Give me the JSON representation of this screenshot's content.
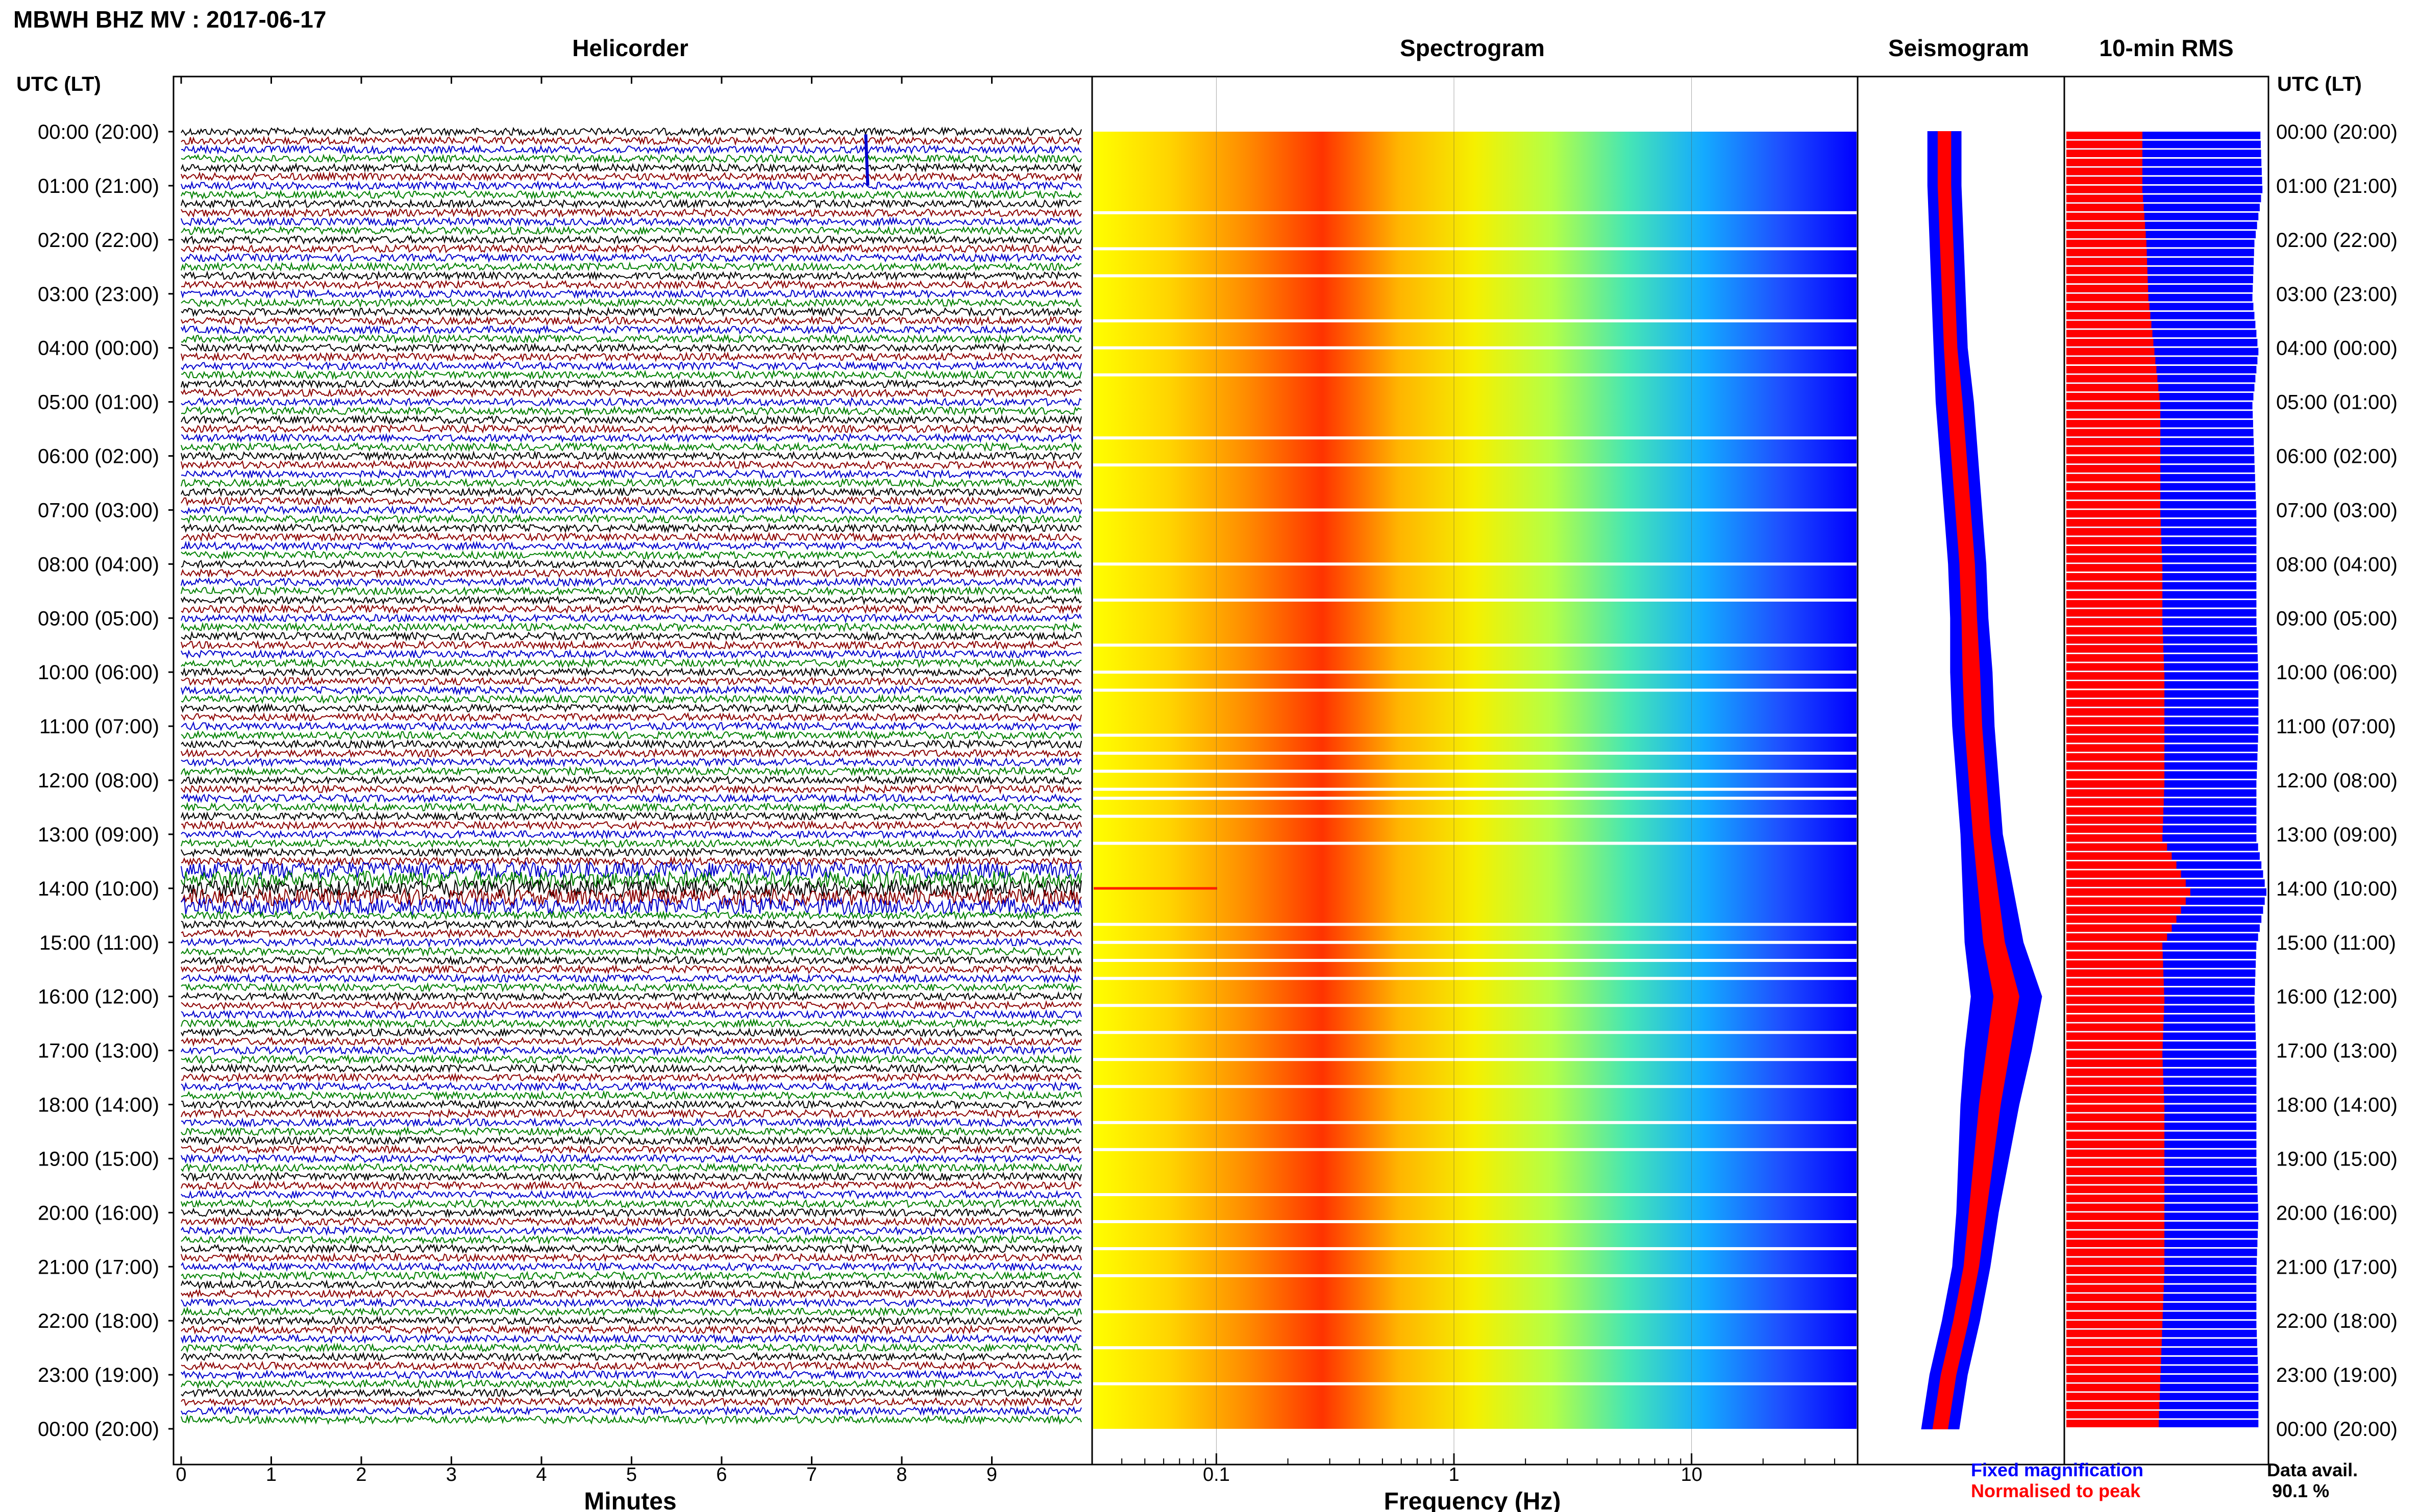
{
  "header": {
    "title": "MBWH BHZ MV : 2017-06-17",
    "utc_label_left": "UTC (LT)",
    "utc_label_right": "UTC (LT)"
  },
  "panels": {
    "helicorder": {
      "title": "Helicorder",
      "xlabel": "Minutes",
      "xticks": [
        "0",
        "1",
        "2",
        "3",
        "4",
        "5",
        "6",
        "7",
        "8",
        "9"
      ],
      "trace_colors": [
        "#000000",
        "#8b0000",
        "#0000cc",
        "#008000"
      ]
    },
    "spectrogram": {
      "title": "Spectrogram",
      "xlabel": "Frequency (Hz)",
      "xticks": [
        "0.1",
        "1",
        "10"
      ],
      "color_stops": [
        "#ffff00",
        "#ffd400",
        "#ff8c00",
        "#ff3300",
        "#ffb400",
        "#f5f000",
        "#b4ff46",
        "#46e6b4",
        "#14aaff",
        "#1e50ff",
        "#0000ff"
      ]
    },
    "seismogram": {
      "title": "Seismogram",
      "legend": {
        "fixed": "Fixed magnification",
        "fixed_color": "#0000ff",
        "normalised": "Normalised to peak",
        "normalised_color": "#ff0000"
      }
    },
    "rms": {
      "title": "10-min RMS",
      "data_avail_label": "Data avail.",
      "data_avail_value": "90.1 %"
    }
  },
  "time_labels": [
    "00:00 (20:00)",
    "01:00 (21:00)",
    "02:00 (22:00)",
    "03:00 (23:00)",
    "04:00 (00:00)",
    "05:00 (01:00)",
    "06:00 (02:00)",
    "07:00 (03:00)",
    "08:00 (04:00)",
    "09:00 (05:00)",
    "10:00 (06:00)",
    "11:00 (07:00)",
    "12:00 (08:00)",
    "13:00 (09:00)",
    "14:00 (10:00)",
    "15:00 (11:00)",
    "16:00 (12:00)",
    "17:00 (13:00)",
    "18:00 (14:00)",
    "19:00 (15:00)",
    "20:00 (16:00)",
    "21:00 (17:00)",
    "22:00 (18:00)",
    "23:00 (19:00)",
    "00:00 (20:00)"
  ],
  "chart_data": [
    {
      "type": "line",
      "title": "Helicorder",
      "xlabel": "Minutes",
      "xlim": [
        0,
        10
      ],
      "x_ticks": [
        0,
        1,
        2,
        3,
        4,
        5,
        6,
        7,
        8,
        9
      ],
      "rows": 144,
      "notes": "Dense seismic traces, one row per 10 minutes; large-amplitude bursts near 14:00 and a spike near 00:45 at ~7.6 min"
    },
    {
      "type": "heatmap",
      "title": "Spectrogram",
      "xlabel": "Frequency (Hz)",
      "xscale": "log",
      "xlim": [
        0.03,
        50
      ],
      "x_ticks": [
        0.1,
        1,
        10
      ],
      "peak_band_hz": [
        0.3,
        0.6
      ]
    },
    {
      "type": "line",
      "title": "Seismogram",
      "series": [
        {
          "name": "Fixed magnification",
          "color": "#0000ff",
          "hours": [
            0,
            1,
            2,
            3,
            4,
            5,
            6,
            7,
            8,
            9,
            10,
            11,
            12,
            13,
            14,
            15,
            16,
            17,
            18,
            19,
            20,
            21,
            22,
            23,
            24
          ],
          "center": [
            0.42,
            0.42,
            0.43,
            0.44,
            0.45,
            0.47,
            0.49,
            0.51,
            0.53,
            0.54,
            0.55,
            0.56,
            0.58,
            0.6,
            0.63,
            0.66,
            0.72,
            0.68,
            0.64,
            0.61,
            0.58,
            0.55,
            0.5,
            0.44,
            0.4
          ],
          "halfwidth": [
            0.08,
            0.08,
            0.08,
            0.08,
            0.08,
            0.09,
            0.09,
            0.09,
            0.09,
            0.09,
            0.1,
            0.1,
            0.1,
            0.1,
            0.12,
            0.14,
            0.17,
            0.16,
            0.14,
            0.12,
            0.1,
            0.09,
            0.09,
            0.09,
            0.09
          ]
        },
        {
          "name": "Normalised to peak",
          "color": "#ff0000",
          "hours": [
            0,
            1,
            2,
            3,
            4,
            5,
            6,
            7,
            8,
            9,
            10,
            11,
            12,
            13,
            14,
            15,
            16,
            17,
            18,
            19,
            20,
            21,
            22,
            23,
            24
          ],
          "center": [
            0.42,
            0.42,
            0.43,
            0.44,
            0.45,
            0.47,
            0.49,
            0.51,
            0.53,
            0.54,
            0.55,
            0.56,
            0.58,
            0.6,
            0.63,
            0.66,
            0.72,
            0.68,
            0.64,
            0.61,
            0.58,
            0.55,
            0.5,
            0.44,
            0.4
          ],
          "halfwidth": [
            0.03,
            0.03,
            0.03,
            0.03,
            0.03,
            0.035,
            0.035,
            0.035,
            0.035,
            0.035,
            0.04,
            0.04,
            0.04,
            0.04,
            0.045,
            0.05,
            0.06,
            0.055,
            0.05,
            0.045,
            0.04,
            0.035,
            0.035,
            0.035,
            0.035
          ]
        }
      ]
    },
    {
      "type": "bar",
      "title": "10-min RMS",
      "orientation": "horizontal",
      "series": [
        {
          "name": "Fixed magnification",
          "color": "#0000ff",
          "hours": [
            0,
            1,
            2,
            3,
            4,
            5,
            6,
            7,
            8,
            9,
            10,
            11,
            12,
            13,
            14,
            15,
            16,
            17,
            18,
            19,
            20,
            21,
            22,
            23,
            24
          ],
          "values": [
            0.97,
            0.98,
            0.94,
            0.93,
            0.96,
            0.93,
            0.94,
            0.95,
            0.95,
            0.95,
            0.96,
            0.96,
            0.95,
            0.95,
            1.0,
            0.95,
            0.94,
            0.95,
            0.95,
            0.95,
            0.96,
            0.95,
            0.95,
            0.96,
            0.96
          ]
        },
        {
          "name": "Normalised to peak",
          "color": "#ff0000",
          "hours": [
            0,
            1,
            2,
            3,
            4,
            5,
            6,
            7,
            8,
            9,
            10,
            11,
            12,
            13,
            14,
            15,
            16,
            17,
            18,
            19,
            20,
            21,
            22,
            23,
            24
          ],
          "values": [
            0.38,
            0.38,
            0.4,
            0.41,
            0.44,
            0.47,
            0.47,
            0.47,
            0.48,
            0.48,
            0.49,
            0.49,
            0.49,
            0.48,
            0.62,
            0.48,
            0.49,
            0.48,
            0.49,
            0.49,
            0.49,
            0.49,
            0.48,
            0.47,
            0.46
          ]
        }
      ]
    }
  ]
}
